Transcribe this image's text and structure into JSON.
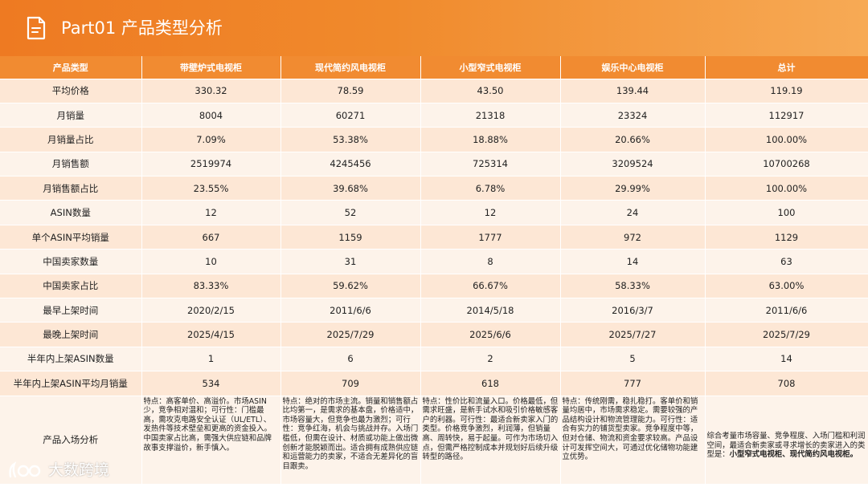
{
  "header": {
    "title": "Part01  产品类型分析",
    "icon": "document-icon"
  },
  "table": {
    "columns": [
      "产品类型",
      "带壁炉式电视柜",
      "现代简约风电视柜",
      "小型窄式电视柜",
      "娱乐中心电视柜",
      "总计"
    ],
    "rows": [
      {
        "label": "平均价格",
        "values": [
          "330.32",
          "78.59",
          "43.50",
          "139.44",
          "119.19"
        ]
      },
      {
        "label": "月销量",
        "values": [
          "8004",
          "60271",
          "21318",
          "23324",
          "112917"
        ]
      },
      {
        "label": "月销量占比",
        "values": [
          "7.09%",
          "53.38%",
          "18.88%",
          "20.66%",
          "100.00%"
        ]
      },
      {
        "label": "月销售额",
        "values": [
          "2519974",
          "4245456",
          "725314",
          "3209524",
          "10700268"
        ]
      },
      {
        "label": "月销售额占比",
        "values": [
          "23.55%",
          "39.68%",
          "6.78%",
          "29.99%",
          "100.00%"
        ]
      },
      {
        "label": "ASIN数量",
        "values": [
          "12",
          "52",
          "12",
          "24",
          "100"
        ]
      },
      {
        "label": "单个ASIN平均销量",
        "values": [
          "667",
          "1159",
          "1777",
          "972",
          "1129"
        ]
      },
      {
        "label": "中国卖家数量",
        "values": [
          "10",
          "31",
          "8",
          "14",
          "63"
        ]
      },
      {
        "label": "中国卖家占比",
        "values": [
          "83.33%",
          "59.62%",
          "66.67%",
          "58.33%",
          "63.00%"
        ]
      },
      {
        "label": "最早上架时间",
        "values": [
          "2020/2/15",
          "2011/6/6",
          "2014/5/18",
          "2016/3/7",
          "2011/6/6"
        ]
      },
      {
        "label": "最晚上架时间",
        "values": [
          "2025/4/15",
          "2025/7/29",
          "2025/6/6",
          "2025/7/27",
          "2025/7/29"
        ]
      },
      {
        "label": "半年内上架ASIN数量",
        "values": [
          "1",
          "6",
          "2",
          "5",
          "14"
        ]
      },
      {
        "label": "半年内上架ASIN平均月销量",
        "values": [
          "534",
          "709",
          "618",
          "777",
          "708"
        ]
      }
    ],
    "analysis": {
      "label": "产品入场分析",
      "texts": [
        "特点：高客单价、高溢价。市场ASIN少，竞争相对温和；可行性：门槛最高，需攻克电路安全认证（UL/ETL）、发热件等技术壁垒和更高的资金投入。中国卖家占比高，需强大供应链和品牌故事支撑溢价，新手慎入。",
        "特点：绝对的市场主流。销量和销售额占比均第一，是需求的基本盘，价格适中，市场容量大，但竞争也最为激烈；可行性：竞争红海，机会与挑战并存。入场门槛低，但需在设计、材质或功能上做出微创新才能脱颖而出。适合拥有成熟供应链和运营能力的卖家，不适合无差异化的盲目跟卖。",
        "特点：性价比和流量入口。价格最低，但需求旺盛，是新手试水和吸引价格敏感客户的利器。可行性：最适合新卖家入门的类型。价格竞争激烈，利润薄，但销量高、周转快，易于起量。可作为市场切入点，但需严格控制成本并规划好后续升级转型的路径。",
        "特点：传统刚需，稳扎稳打。客单价和销量均居中，市场需求稳定。需要较强的产品结构设计和物流管理能力。可行性：适合有实力的铺货型卖家。竞争程度中等，但对仓储、物流和资金要求较高。产品设计可发挥空间大，可通过优化储物功能建立优势。"
      ],
      "total_text": "综合考量市场容量、竞争程度、入场门槛和利润空间，最适合新卖家或寻求增长的卖家进入的类型是：",
      "total_highlight": "小型窄式电视柜、现代简约风电视柜。"
    }
  },
  "watermark": {
    "text": "大数跨境",
    "icon": "brand-logo-icon"
  },
  "colors": {
    "header": "#ee7a22",
    "table_header": "#f18b31",
    "row_odd": "#fde7d5",
    "row_even": "#fdf3ea"
  }
}
